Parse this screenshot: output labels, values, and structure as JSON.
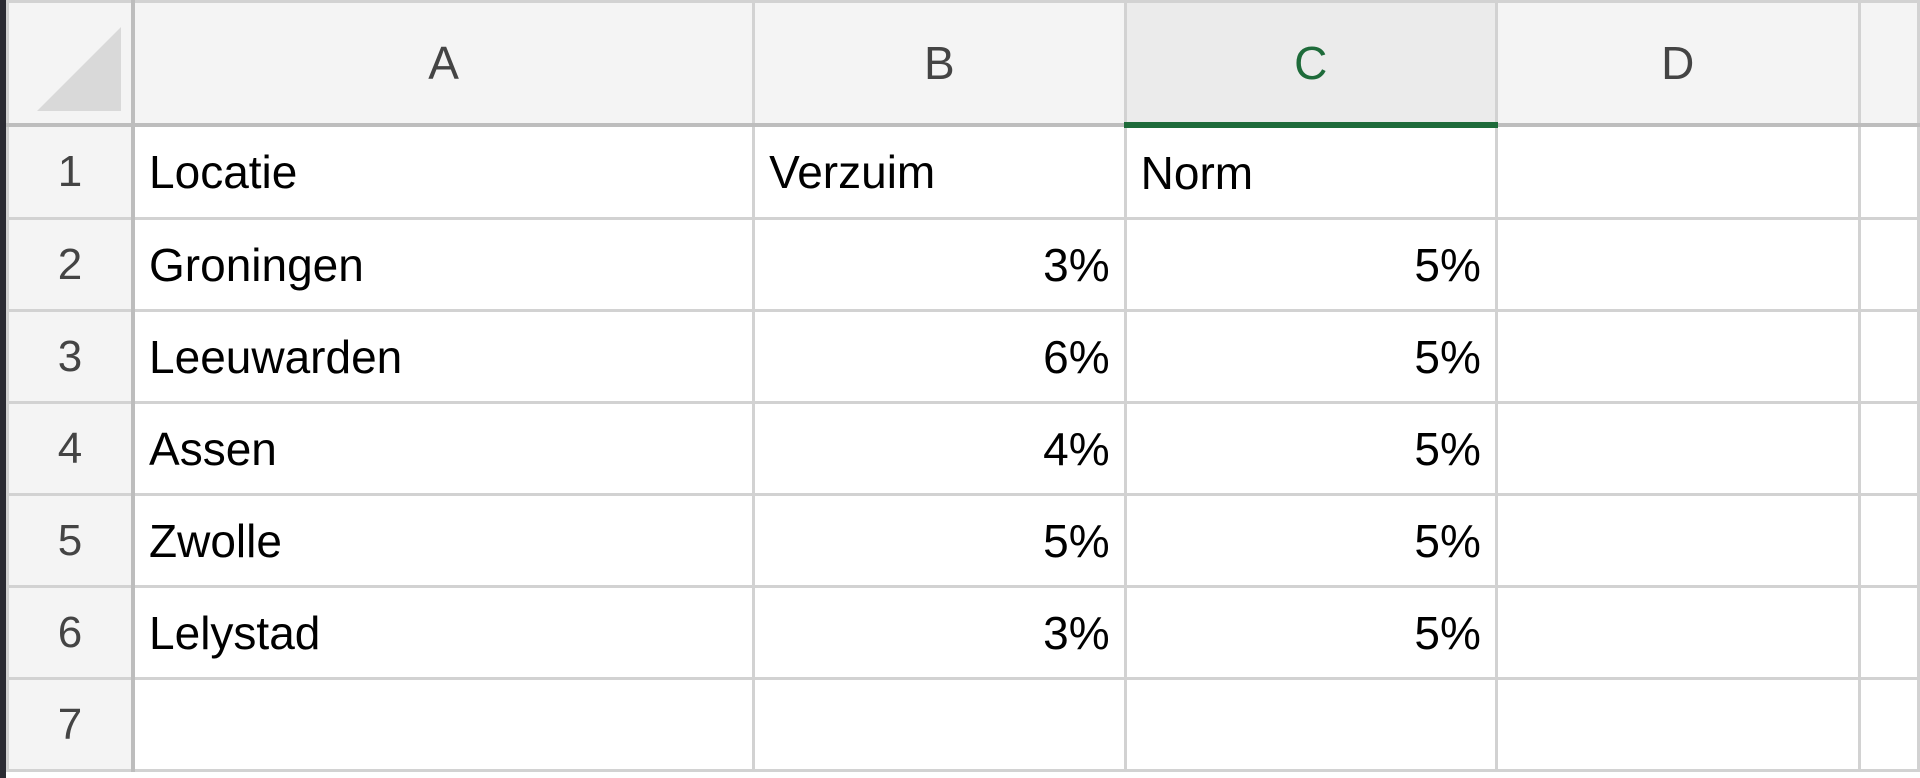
{
  "columns": [
    "A",
    "B",
    "C",
    "D",
    ""
  ],
  "selected_column": "C",
  "accent_color": "#1e6b3a",
  "rows": [
    {
      "num": "1",
      "cells": [
        "Locatie",
        "Verzuim",
        "Norm",
        "",
        ""
      ]
    },
    {
      "num": "2",
      "cells": [
        "Groningen",
        "3%",
        "5%",
        "",
        ""
      ]
    },
    {
      "num": "3",
      "cells": [
        "Leeuwarden",
        "6%",
        "5%",
        "",
        ""
      ]
    },
    {
      "num": "4",
      "cells": [
        "Assen",
        "4%",
        "5%",
        "",
        ""
      ]
    },
    {
      "num": "5",
      "cells": [
        "Zwolle",
        "5%",
        "5%",
        "",
        ""
      ]
    },
    {
      "num": "6",
      "cells": [
        "Lelystad",
        "3%",
        "5%",
        "",
        ""
      ]
    },
    {
      "num": "7",
      "cells": [
        "",
        "",
        "",
        "",
        ""
      ]
    }
  ]
}
